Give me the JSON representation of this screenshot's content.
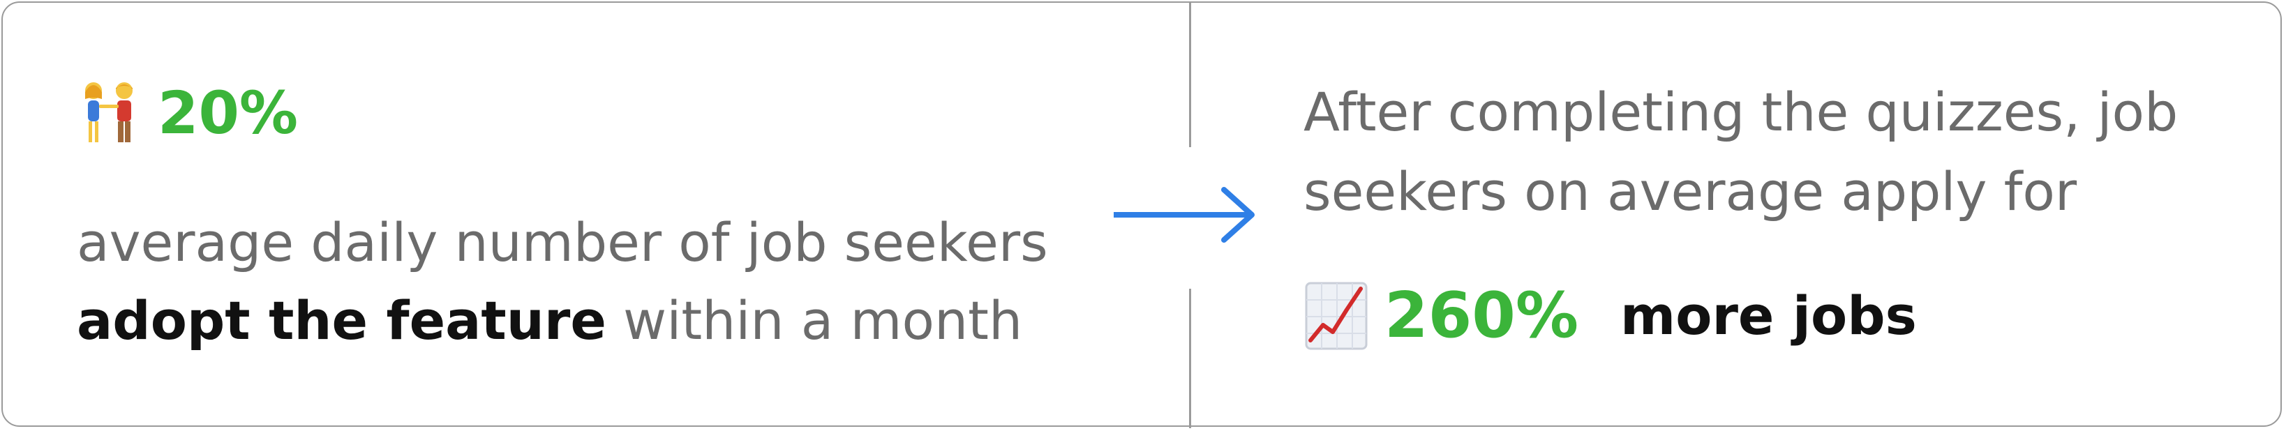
{
  "left": {
    "stat": "20%",
    "line1": "average daily number of job seekers",
    "emphasis": "adopt the feature",
    "line2_rest": " within a month"
  },
  "right": {
    "desc_line1": "After completing the quizzes, job",
    "desc_line2": "seekers on average apply for",
    "stat": "260%",
    "suffix": "more jobs"
  },
  "icons": {
    "left": "couple-holding-hands-icon",
    "right": "chart-increasing-icon",
    "connector": "right-arrow-icon"
  },
  "colors": {
    "stat_green": "#3bb43a",
    "arrow_blue": "#2f7fe6",
    "muted_text": "#6b6b6b",
    "strong_text": "#111111",
    "border": "#9a9a9a"
  }
}
